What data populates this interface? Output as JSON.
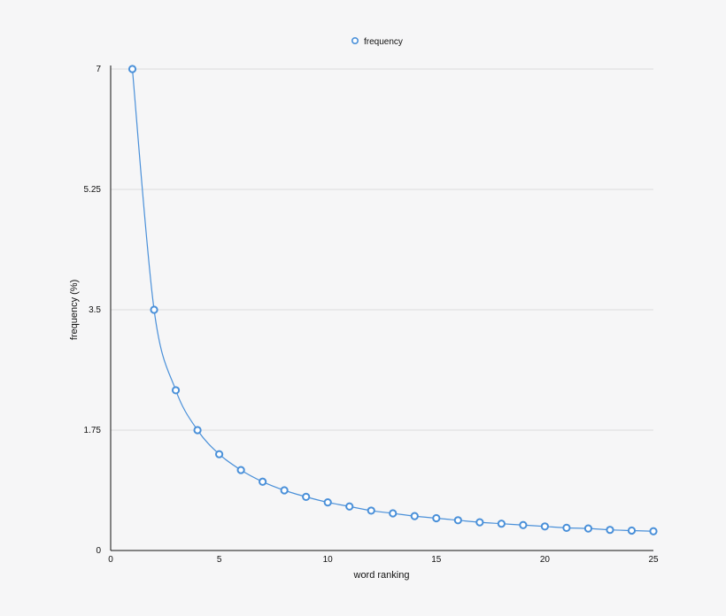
{
  "chart_data": {
    "type": "line",
    "title": "",
    "xlabel": "word ranking",
    "ylabel": "frequency (%)",
    "xlim": [
      0,
      25
    ],
    "ylim": [
      0,
      7
    ],
    "xticks": [
      "0",
      "5",
      "10",
      "15",
      "20",
      "25"
    ],
    "yticks": [
      "0",
      "1.75",
      "3.5",
      "5.25",
      "7"
    ],
    "grid": "horizontal",
    "legend": "top-center",
    "series": [
      {
        "name": "frequency",
        "color": "#4a90d9",
        "x": [
          1,
          2,
          3,
          4,
          5,
          6,
          7,
          8,
          9,
          10,
          11,
          12,
          13,
          14,
          15,
          16,
          17,
          18,
          19,
          20,
          21,
          22,
          23,
          24,
          25
        ],
        "y": [
          7,
          3.5,
          2.33,
          1.75,
          1.4,
          1.17,
          1.0,
          0.875,
          0.78,
          0.7,
          0.64,
          0.58,
          0.54,
          0.5,
          0.47,
          0.44,
          0.41,
          0.39,
          0.37,
          0.35,
          0.33,
          0.32,
          0.3,
          0.29,
          0.28
        ]
      }
    ]
  }
}
